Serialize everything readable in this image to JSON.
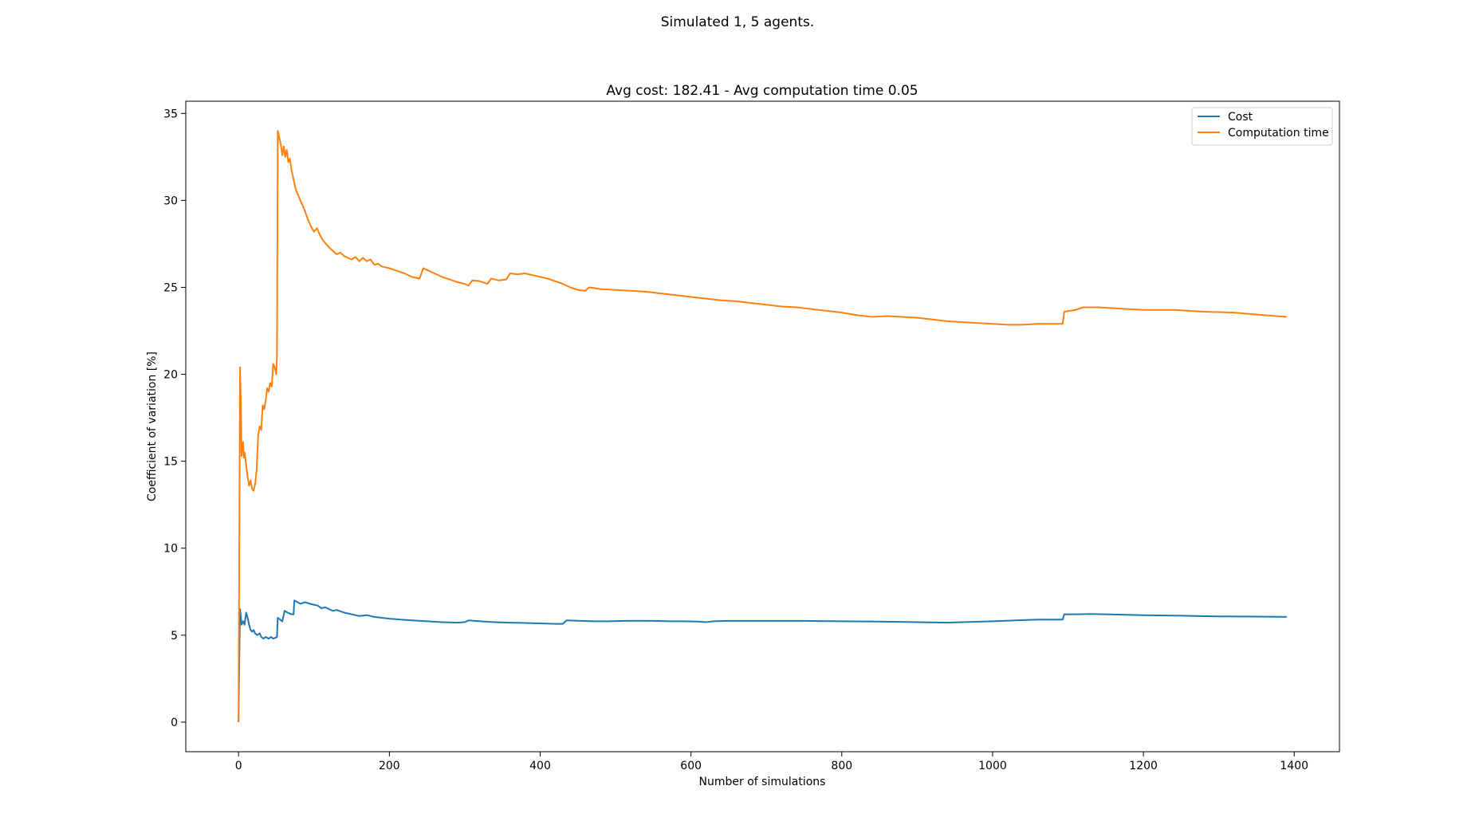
{
  "figure": {
    "suptitle": "Simulated 1, 5 agents."
  },
  "chart_data": {
    "type": "line",
    "title": "Avg cost: 182.41 - Avg computation time 0.05",
    "xlabel": "Number of simulations",
    "ylabel": "Coefficient of variation [%]",
    "xlim": [
      -70,
      1460
    ],
    "ylim": [
      -1.7,
      35.7
    ],
    "xticks": [
      0,
      200,
      400,
      600,
      800,
      1000,
      1200,
      1400
    ],
    "yticks": [
      0,
      5,
      10,
      15,
      20,
      25,
      30,
      35
    ],
    "grid": false,
    "legend_position": "upper-right",
    "series": [
      {
        "name": "Cost",
        "color": "#1f77b4",
        "points": [
          [
            0,
            0
          ],
          [
            1,
            3.5
          ],
          [
            2,
            6.5
          ],
          [
            4,
            5.6
          ],
          [
            6,
            5.8
          ],
          [
            8,
            5.6
          ],
          [
            10,
            6.3
          ],
          [
            12,
            6.0
          ],
          [
            14,
            5.6
          ],
          [
            16,
            5.3
          ],
          [
            18,
            5.2
          ],
          [
            20,
            5.3
          ],
          [
            22,
            5.1
          ],
          [
            25,
            5.0
          ],
          [
            28,
            5.1
          ],
          [
            30,
            4.9
          ],
          [
            33,
            4.8
          ],
          [
            36,
            4.9
          ],
          [
            40,
            4.8
          ],
          [
            43,
            4.9
          ],
          [
            46,
            4.8
          ],
          [
            49,
            4.85
          ],
          [
            51,
            4.9
          ],
          [
            52,
            6.0
          ],
          [
            55,
            5.9
          ],
          [
            58,
            5.8
          ],
          [
            61,
            6.4
          ],
          [
            65,
            6.3
          ],
          [
            70,
            6.2
          ],
          [
            73,
            6.2
          ],
          [
            74,
            7.0
          ],
          [
            78,
            6.9
          ],
          [
            82,
            6.8
          ],
          [
            88,
            6.9
          ],
          [
            95,
            6.8
          ],
          [
            100,
            6.75
          ],
          [
            105,
            6.7
          ],
          [
            110,
            6.55
          ],
          [
            115,
            6.6
          ],
          [
            120,
            6.5
          ],
          [
            125,
            6.4
          ],
          [
            130,
            6.45
          ],
          [
            140,
            6.3
          ],
          [
            150,
            6.2
          ],
          [
            160,
            6.1
          ],
          [
            170,
            6.15
          ],
          [
            180,
            6.05
          ],
          [
            190,
            6.0
          ],
          [
            200,
            5.95
          ],
          [
            215,
            5.9
          ],
          [
            230,
            5.85
          ],
          [
            250,
            5.8
          ],
          [
            270,
            5.75
          ],
          [
            290,
            5.72
          ],
          [
            300,
            5.75
          ],
          [
            305,
            5.85
          ],
          [
            320,
            5.8
          ],
          [
            340,
            5.75
          ],
          [
            360,
            5.72
          ],
          [
            380,
            5.7
          ],
          [
            400,
            5.68
          ],
          [
            420,
            5.65
          ],
          [
            430,
            5.65
          ],
          [
            435,
            5.85
          ],
          [
            450,
            5.83
          ],
          [
            470,
            5.8
          ],
          [
            490,
            5.8
          ],
          [
            510,
            5.82
          ],
          [
            530,
            5.83
          ],
          [
            550,
            5.82
          ],
          [
            570,
            5.8
          ],
          [
            590,
            5.8
          ],
          [
            610,
            5.78
          ],
          [
            620,
            5.75
          ],
          [
            630,
            5.8
          ],
          [
            650,
            5.82
          ],
          [
            700,
            5.82
          ],
          [
            750,
            5.82
          ],
          [
            800,
            5.8
          ],
          [
            850,
            5.78
          ],
          [
            900,
            5.75
          ],
          [
            940,
            5.72
          ],
          [
            960,
            5.75
          ],
          [
            1000,
            5.8
          ],
          [
            1030,
            5.85
          ],
          [
            1060,
            5.9
          ],
          [
            1093,
            5.9
          ],
          [
            1095,
            6.2
          ],
          [
            1110,
            6.2
          ],
          [
            1130,
            6.22
          ],
          [
            1150,
            6.2
          ],
          [
            1200,
            6.15
          ],
          [
            1250,
            6.12
          ],
          [
            1300,
            6.08
          ],
          [
            1350,
            6.07
          ],
          [
            1390,
            6.05
          ]
        ]
      },
      {
        "name": "Computation time",
        "color": "#ff7f0e",
        "points": [
          [
            0,
            0
          ],
          [
            1,
            10.0
          ],
          [
            2,
            20.4
          ],
          [
            3,
            18.5
          ],
          [
            4,
            15.3
          ],
          [
            5,
            15.8
          ],
          [
            6,
            16.1
          ],
          [
            7,
            15.2
          ],
          [
            8,
            15.5
          ],
          [
            10,
            14.8
          ],
          [
            12,
            14.1
          ],
          [
            14,
            13.6
          ],
          [
            16,
            13.9
          ],
          [
            18,
            13.4
          ],
          [
            20,
            13.3
          ],
          [
            22,
            13.7
          ],
          [
            24,
            14.5
          ],
          [
            26,
            16.5
          ],
          [
            28,
            17.0
          ],
          [
            30,
            16.8
          ],
          [
            32,
            18.2
          ],
          [
            34,
            18.0
          ],
          [
            36,
            18.5
          ],
          [
            38,
            19.2
          ],
          [
            40,
            19.0
          ],
          [
            42,
            19.5
          ],
          [
            44,
            19.3
          ],
          [
            46,
            20.6
          ],
          [
            48,
            20.4
          ],
          [
            50,
            20.0
          ],
          [
            51,
            21.0
          ],
          [
            52,
            34.0
          ],
          [
            54,
            33.6
          ],
          [
            56,
            33.2
          ],
          [
            58,
            32.6
          ],
          [
            60,
            33.1
          ],
          [
            62,
            32.5
          ],
          [
            64,
            32.9
          ],
          [
            66,
            32.2
          ],
          [
            68,
            32.4
          ],
          [
            70,
            31.8
          ],
          [
            73,
            31.2
          ],
          [
            76,
            30.6
          ],
          [
            80,
            30.2
          ],
          [
            84,
            29.8
          ],
          [
            88,
            29.4
          ],
          [
            92,
            28.9
          ],
          [
            96,
            28.5
          ],
          [
            100,
            28.2
          ],
          [
            104,
            28.4
          ],
          [
            108,
            28.0
          ],
          [
            112,
            27.7
          ],
          [
            116,
            27.5
          ],
          [
            120,
            27.3
          ],
          [
            125,
            27.1
          ],
          [
            130,
            26.9
          ],
          [
            135,
            27.0
          ],
          [
            140,
            26.8
          ],
          [
            145,
            26.7
          ],
          [
            150,
            26.6
          ],
          [
            155,
            26.75
          ],
          [
            160,
            26.5
          ],
          [
            165,
            26.7
          ],
          [
            170,
            26.5
          ],
          [
            175,
            26.6
          ],
          [
            180,
            26.3
          ],
          [
            185,
            26.35
          ],
          [
            190,
            26.2
          ],
          [
            200,
            26.1
          ],
          [
            210,
            25.95
          ],
          [
            220,
            25.8
          ],
          [
            230,
            25.6
          ],
          [
            240,
            25.5
          ],
          [
            245,
            26.1
          ],
          [
            250,
            26.0
          ],
          [
            260,
            25.8
          ],
          [
            270,
            25.6
          ],
          [
            280,
            25.45
          ],
          [
            290,
            25.3
          ],
          [
            300,
            25.2
          ],
          [
            305,
            25.1
          ],
          [
            310,
            25.4
          ],
          [
            320,
            25.35
          ],
          [
            330,
            25.2
          ],
          [
            335,
            25.5
          ],
          [
            345,
            25.4
          ],
          [
            355,
            25.45
          ],
          [
            360,
            25.8
          ],
          [
            370,
            25.75
          ],
          [
            380,
            25.8
          ],
          [
            390,
            25.7
          ],
          [
            400,
            25.6
          ],
          [
            410,
            25.5
          ],
          [
            420,
            25.35
          ],
          [
            430,
            25.2
          ],
          [
            440,
            25.0
          ],
          [
            450,
            24.85
          ],
          [
            460,
            24.8
          ],
          [
            465,
            25.0
          ],
          [
            480,
            24.9
          ],
          [
            500,
            24.85
          ],
          [
            520,
            24.8
          ],
          [
            540,
            24.75
          ],
          [
            560,
            24.65
          ],
          [
            580,
            24.55
          ],
          [
            600,
            24.45
          ],
          [
            620,
            24.35
          ],
          [
            640,
            24.25
          ],
          [
            660,
            24.2
          ],
          [
            680,
            24.1
          ],
          [
            700,
            24.0
          ],
          [
            720,
            23.9
          ],
          [
            740,
            23.85
          ],
          [
            760,
            23.75
          ],
          [
            780,
            23.65
          ],
          [
            800,
            23.55
          ],
          [
            820,
            23.4
          ],
          [
            840,
            23.3
          ],
          [
            860,
            23.35
          ],
          [
            880,
            23.3
          ],
          [
            900,
            23.25
          ],
          [
            920,
            23.15
          ],
          [
            940,
            23.05
          ],
          [
            960,
            23.0
          ],
          [
            980,
            22.95
          ],
          [
            1000,
            22.9
          ],
          [
            1020,
            22.85
          ],
          [
            1040,
            22.85
          ],
          [
            1060,
            22.9
          ],
          [
            1080,
            22.9
          ],
          [
            1093,
            22.9
          ],
          [
            1095,
            23.6
          ],
          [
            1110,
            23.7
          ],
          [
            1120,
            23.85
          ],
          [
            1140,
            23.85
          ],
          [
            1160,
            23.8
          ],
          [
            1180,
            23.75
          ],
          [
            1200,
            23.7
          ],
          [
            1240,
            23.7
          ],
          [
            1280,
            23.6
          ],
          [
            1320,
            23.55
          ],
          [
            1360,
            23.4
          ],
          [
            1390,
            23.3
          ]
        ]
      }
    ]
  }
}
